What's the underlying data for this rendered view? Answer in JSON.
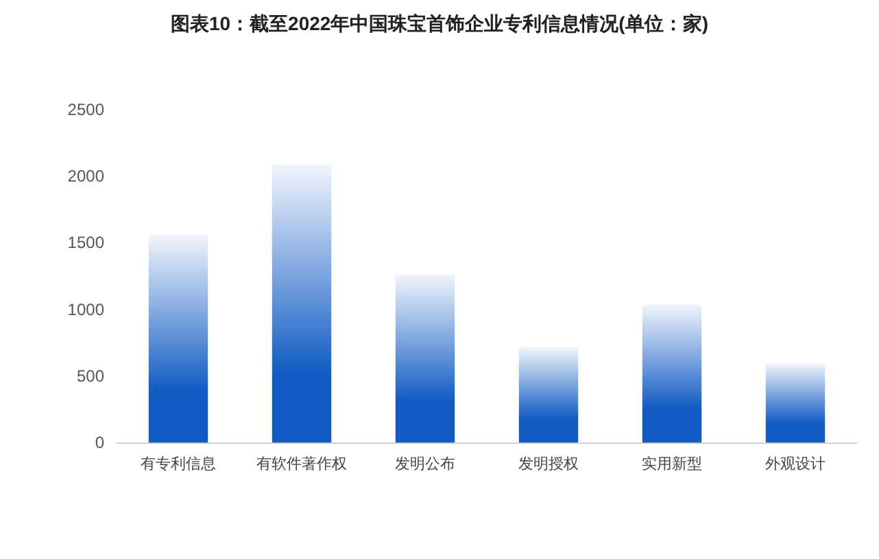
{
  "chart_data": {
    "type": "bar",
    "title": "图表10：截至2022年中国珠宝首饰企业专利信息情况(单位：家)",
    "categories": [
      "有专利信息",
      "有软件著作权",
      "发明公布",
      "发明授权",
      "实用新型",
      "外观设计"
    ],
    "values": [
      1560,
      2090,
      1260,
      715,
      1035,
      595
    ],
    "color": "#125cc4",
    "ylim": [
      0,
      2500
    ],
    "yticks": [
      0,
      500,
      1000,
      1500,
      2000,
      2500
    ],
    "grid": false
  }
}
